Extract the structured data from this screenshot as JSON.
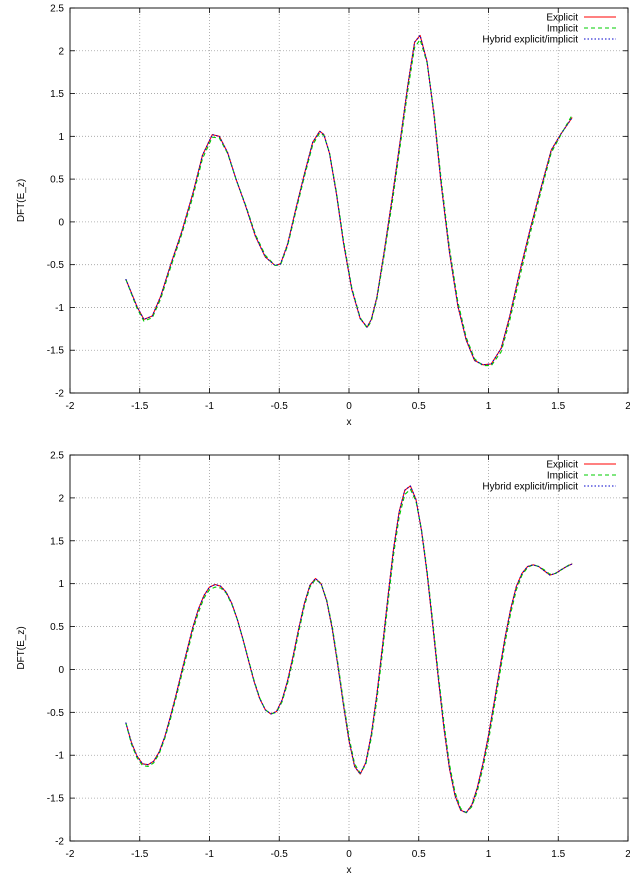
{
  "chart_data": [
    {
      "type": "line",
      "xlabel": "x",
      "ylabel": "DFT(E_z)",
      "xlim": [
        -2,
        2
      ],
      "ylim": [
        -2,
        2.5
      ],
      "xticks": [
        "-2",
        "-1.5",
        "-1",
        "-0.5",
        "0",
        "0.5",
        "1",
        "1.5",
        "2"
      ],
      "yticks": [
        "-2",
        "-1.5",
        "-1",
        "-0.5",
        "0",
        "0.5",
        "1",
        "1.5",
        "2",
        "2.5"
      ],
      "grid": true,
      "legend_position": "top-right",
      "series": [
        {
          "name": "Explicit",
          "color": "#ff0000",
          "dash": "solid",
          "x": [
            -1.6,
            -1.52,
            -1.47,
            -1.41,
            -1.35,
            -1.28,
            -1.2,
            -1.12,
            -1.05,
            -0.98,
            -0.93,
            -0.87,
            -0.81,
            -0.74,
            -0.67,
            -0.6,
            -0.53,
            -0.49,
            -0.44,
            -0.38,
            -0.32,
            -0.26,
            -0.21,
            -0.18,
            -0.14,
            -0.09,
            -0.04,
            0.02,
            0.08,
            0.13,
            0.16,
            0.2,
            0.25,
            0.31,
            0.37,
            0.42,
            0.47,
            0.51,
            0.56,
            0.61,
            0.66,
            0.72,
            0.78,
            0.84,
            0.9,
            0.96,
            1.02,
            1.09,
            1.15,
            1.22,
            1.3,
            1.38,
            1.45,
            1.52,
            1.6
          ],
          "y": [
            -0.67,
            -0.99,
            -1.14,
            -1.1,
            -0.87,
            -0.51,
            -0.12,
            0.33,
            0.78,
            1.02,
            1.0,
            0.81,
            0.5,
            0.18,
            -0.17,
            -0.41,
            -0.51,
            -0.49,
            -0.26,
            0.16,
            0.56,
            0.93,
            1.06,
            1.02,
            0.8,
            0.33,
            -0.24,
            -0.79,
            -1.13,
            -1.23,
            -1.14,
            -0.88,
            -0.37,
            0.28,
            0.98,
            1.58,
            2.1,
            2.18,
            1.87,
            1.24,
            0.45,
            -0.35,
            -0.98,
            -1.38,
            -1.62,
            -1.67,
            -1.66,
            -1.48,
            -1.12,
            -0.61,
            -0.08,
            0.42,
            0.84,
            1.03,
            1.22
          ]
        },
        {
          "name": "Implicit",
          "color": "#00cc00",
          "dash": "dashed",
          "x": [
            -1.6,
            -1.52,
            -1.47,
            -1.41,
            -1.35,
            -1.28,
            -1.2,
            -1.12,
            -1.05,
            -0.98,
            -0.93,
            -0.87,
            -0.81,
            -0.74,
            -0.67,
            -0.6,
            -0.53,
            -0.49,
            -0.44,
            -0.38,
            -0.32,
            -0.26,
            -0.21,
            -0.18,
            -0.14,
            -0.09,
            -0.04,
            0.02,
            0.08,
            0.13,
            0.16,
            0.2,
            0.25,
            0.31,
            0.37,
            0.42,
            0.47,
            0.51,
            0.56,
            0.61,
            0.66,
            0.72,
            0.78,
            0.84,
            0.9,
            0.96,
            1.02,
            1.09,
            1.15,
            1.22,
            1.3,
            1.38,
            1.45,
            1.52,
            1.6
          ],
          "y": [
            -0.67,
            -1.01,
            -1.16,
            -1.12,
            -0.9,
            -0.54,
            -0.15,
            0.29,
            0.74,
            0.99,
            0.98,
            0.8,
            0.5,
            0.19,
            -0.15,
            -0.39,
            -0.51,
            -0.5,
            -0.28,
            0.13,
            0.53,
            0.9,
            1.04,
            1.01,
            0.81,
            0.35,
            -0.21,
            -0.77,
            -1.12,
            -1.24,
            -1.16,
            -0.9,
            -0.41,
            0.22,
            0.92,
            1.52,
            2.04,
            2.13,
            1.86,
            1.27,
            0.5,
            -0.3,
            -0.93,
            -1.35,
            -1.6,
            -1.68,
            -1.68,
            -1.52,
            -1.17,
            -0.67,
            -0.13,
            0.38,
            0.81,
            1.02,
            1.25
          ]
        },
        {
          "name": "Hybrid explicit/implicit",
          "color": "#0000cc",
          "dash": "dotted",
          "x": [
            -1.6,
            -1.52,
            -1.47,
            -1.41,
            -1.35,
            -1.28,
            -1.2,
            -1.12,
            -1.05,
            -0.98,
            -0.93,
            -0.87,
            -0.81,
            -0.74,
            -0.67,
            -0.6,
            -0.53,
            -0.49,
            -0.44,
            -0.38,
            -0.32,
            -0.26,
            -0.21,
            -0.18,
            -0.14,
            -0.09,
            -0.04,
            0.02,
            0.08,
            0.13,
            0.16,
            0.2,
            0.25,
            0.31,
            0.37,
            0.42,
            0.47,
            0.51,
            0.56,
            0.61,
            0.66,
            0.72,
            0.78,
            0.84,
            0.9,
            0.96,
            1.02,
            1.09,
            1.15,
            1.22,
            1.3,
            1.38,
            1.45,
            1.52,
            1.6
          ],
          "y": [
            -0.67,
            -0.99,
            -1.14,
            -1.1,
            -0.87,
            -0.51,
            -0.12,
            0.33,
            0.78,
            1.02,
            1.0,
            0.81,
            0.5,
            0.18,
            -0.17,
            -0.41,
            -0.51,
            -0.49,
            -0.26,
            0.16,
            0.56,
            0.93,
            1.06,
            1.02,
            0.8,
            0.33,
            -0.24,
            -0.79,
            -1.13,
            -1.23,
            -1.14,
            -0.88,
            -0.37,
            0.28,
            0.98,
            1.58,
            2.1,
            2.18,
            1.87,
            1.24,
            0.45,
            -0.35,
            -0.98,
            -1.38,
            -1.62,
            -1.67,
            -1.66,
            -1.48,
            -1.12,
            -0.61,
            -0.08,
            0.42,
            0.84,
            1.03,
            1.22
          ]
        }
      ]
    },
    {
      "type": "line",
      "xlabel": "x",
      "ylabel": "DFT(E_z)",
      "xlim": [
        -2,
        2
      ],
      "ylim": [
        -2,
        2.5
      ],
      "xticks": [
        "-2",
        "-1.5",
        "-1",
        "-0.5",
        "0",
        "0.5",
        "1",
        "1.5",
        "2"
      ],
      "yticks": [
        "-2",
        "-1.5",
        "-1",
        "-0.5",
        "0",
        "0.5",
        "1",
        "1.5",
        "2",
        "2.5"
      ],
      "grid": true,
      "legend_position": "top-right",
      "series": [
        {
          "name": "Explicit",
          "color": "#ff0000",
          "dash": "solid",
          "x": [
            -1.6,
            -1.56,
            -1.52,
            -1.48,
            -1.44,
            -1.4,
            -1.36,
            -1.32,
            -1.28,
            -1.24,
            -1.2,
            -1.16,
            -1.12,
            -1.08,
            -1.04,
            -1.0,
            -0.96,
            -0.92,
            -0.88,
            -0.84,
            -0.8,
            -0.76,
            -0.72,
            -0.68,
            -0.64,
            -0.6,
            -0.56,
            -0.52,
            -0.48,
            -0.44,
            -0.4,
            -0.36,
            -0.32,
            -0.28,
            -0.24,
            -0.2,
            -0.16,
            -0.12,
            -0.08,
            -0.04,
            0.0,
            0.04,
            0.08,
            0.12,
            0.16,
            0.2,
            0.24,
            0.28,
            0.32,
            0.36,
            0.4,
            0.44,
            0.48,
            0.52,
            0.56,
            0.6,
            0.64,
            0.68,
            0.72,
            0.76,
            0.8,
            0.84,
            0.88,
            0.92,
            0.96,
            1.0,
            1.04,
            1.08,
            1.12,
            1.16,
            1.2,
            1.24,
            1.28,
            1.32,
            1.36,
            1.4,
            1.44,
            1.48,
            1.52,
            1.56,
            1.6
          ],
          "y": [
            -0.62,
            -0.85,
            -1.01,
            -1.1,
            -1.11,
            -1.07,
            -0.96,
            -0.78,
            -0.55,
            -0.3,
            -0.03,
            0.23,
            0.49,
            0.7,
            0.86,
            0.96,
            0.99,
            0.97,
            0.9,
            0.77,
            0.58,
            0.35,
            0.1,
            -0.14,
            -0.34,
            -0.47,
            -0.52,
            -0.49,
            -0.36,
            -0.13,
            0.16,
            0.48,
            0.77,
            0.98,
            1.06,
            1.0,
            0.8,
            0.47,
            0.05,
            -0.41,
            -0.83,
            -1.13,
            -1.22,
            -1.09,
            -0.76,
            -0.29,
            0.27,
            0.86,
            1.41,
            1.84,
            2.09,
            2.14,
            1.98,
            1.62,
            1.12,
            0.52,
            -0.1,
            -0.68,
            -1.15,
            -1.47,
            -1.64,
            -1.67,
            -1.58,
            -1.38,
            -1.1,
            -0.77,
            -0.39,
            0.0,
            0.38,
            0.71,
            0.97,
            1.12,
            1.2,
            1.22,
            1.2,
            1.15,
            1.1,
            1.12,
            1.16,
            1.2,
            1.23
          ]
        },
        {
          "name": "Implicit",
          "color": "#00cc00",
          "dash": "dashed",
          "x": [
            -1.6,
            -1.56,
            -1.52,
            -1.48,
            -1.44,
            -1.4,
            -1.36,
            -1.32,
            -1.28,
            -1.24,
            -1.2,
            -1.16,
            -1.12,
            -1.08,
            -1.04,
            -1.0,
            -0.96,
            -0.92,
            -0.88,
            -0.84,
            -0.8,
            -0.76,
            -0.72,
            -0.68,
            -0.64,
            -0.6,
            -0.56,
            -0.52,
            -0.48,
            -0.44,
            -0.4,
            -0.36,
            -0.32,
            -0.28,
            -0.24,
            -0.2,
            -0.16,
            -0.12,
            -0.08,
            -0.04,
            0.0,
            0.04,
            0.08,
            0.12,
            0.16,
            0.2,
            0.24,
            0.28,
            0.32,
            0.36,
            0.4,
            0.44,
            0.48,
            0.52,
            0.56,
            0.6,
            0.64,
            0.68,
            0.72,
            0.76,
            0.8,
            0.84,
            0.88,
            0.92,
            0.96,
            1.0,
            1.04,
            1.08,
            1.12,
            1.16,
            1.2,
            1.24,
            1.28,
            1.32,
            1.36,
            1.4,
            1.44,
            1.48,
            1.52,
            1.56,
            1.6
          ],
          "y": [
            -0.62,
            -0.87,
            -1.03,
            -1.12,
            -1.13,
            -1.09,
            -0.98,
            -0.8,
            -0.58,
            -0.33,
            -0.07,
            0.19,
            0.45,
            0.66,
            0.83,
            0.93,
            0.96,
            0.95,
            0.89,
            0.76,
            0.58,
            0.35,
            0.11,
            -0.13,
            -0.33,
            -0.47,
            -0.52,
            -0.5,
            -0.38,
            -0.16,
            0.12,
            0.44,
            0.74,
            0.96,
            1.05,
            1.0,
            0.81,
            0.5,
            0.08,
            -0.37,
            -0.79,
            -1.1,
            -1.21,
            -1.11,
            -0.8,
            -0.35,
            0.2,
            0.79,
            1.34,
            1.78,
            2.04,
            2.1,
            1.96,
            1.63,
            1.15,
            0.57,
            -0.05,
            -0.62,
            -1.1,
            -1.43,
            -1.62,
            -1.67,
            -1.6,
            -1.42,
            -1.15,
            -0.83,
            -0.45,
            -0.06,
            0.32,
            0.66,
            0.93,
            1.1,
            1.19,
            1.22,
            1.2,
            1.16,
            1.11,
            1.12,
            1.16,
            1.2,
            1.24
          ]
        },
        {
          "name": "Hybrid explicit/implicit",
          "color": "#0000cc",
          "dash": "dotted",
          "x": [
            -1.6,
            -1.56,
            -1.52,
            -1.48,
            -1.44,
            -1.4,
            -1.36,
            -1.32,
            -1.28,
            -1.24,
            -1.2,
            -1.16,
            -1.12,
            -1.08,
            -1.04,
            -1.0,
            -0.96,
            -0.92,
            -0.88,
            -0.84,
            -0.8,
            -0.76,
            -0.72,
            -0.68,
            -0.64,
            -0.6,
            -0.56,
            -0.52,
            -0.48,
            -0.44,
            -0.4,
            -0.36,
            -0.32,
            -0.28,
            -0.24,
            -0.2,
            -0.16,
            -0.12,
            -0.08,
            -0.04,
            0.0,
            0.04,
            0.08,
            0.12,
            0.16,
            0.2,
            0.24,
            0.28,
            0.32,
            0.36,
            0.4,
            0.44,
            0.48,
            0.52,
            0.56,
            0.6,
            0.64,
            0.68,
            0.72,
            0.76,
            0.8,
            0.84,
            0.88,
            0.92,
            0.96,
            1.0,
            1.04,
            1.08,
            1.12,
            1.16,
            1.2,
            1.24,
            1.28,
            1.32,
            1.36,
            1.4,
            1.44,
            1.48,
            1.52,
            1.56,
            1.6
          ],
          "y": [
            -0.62,
            -0.85,
            -1.01,
            -1.1,
            -1.11,
            -1.07,
            -0.96,
            -0.78,
            -0.55,
            -0.3,
            -0.03,
            0.23,
            0.49,
            0.7,
            0.86,
            0.96,
            0.99,
            0.97,
            0.9,
            0.77,
            0.58,
            0.35,
            0.1,
            -0.14,
            -0.34,
            -0.47,
            -0.52,
            -0.49,
            -0.36,
            -0.13,
            0.16,
            0.48,
            0.77,
            0.98,
            1.06,
            1.0,
            0.8,
            0.47,
            0.05,
            -0.41,
            -0.83,
            -1.13,
            -1.22,
            -1.09,
            -0.76,
            -0.29,
            0.27,
            0.86,
            1.41,
            1.84,
            2.09,
            2.14,
            1.98,
            1.62,
            1.12,
            0.52,
            -0.1,
            -0.68,
            -1.15,
            -1.47,
            -1.64,
            -1.67,
            -1.58,
            -1.38,
            -1.1,
            -0.77,
            -0.39,
            0.0,
            0.38,
            0.71,
            0.97,
            1.12,
            1.2,
            1.22,
            1.2,
            1.15,
            1.1,
            1.12,
            1.16,
            1.2,
            1.23
          ]
        }
      ]
    }
  ]
}
